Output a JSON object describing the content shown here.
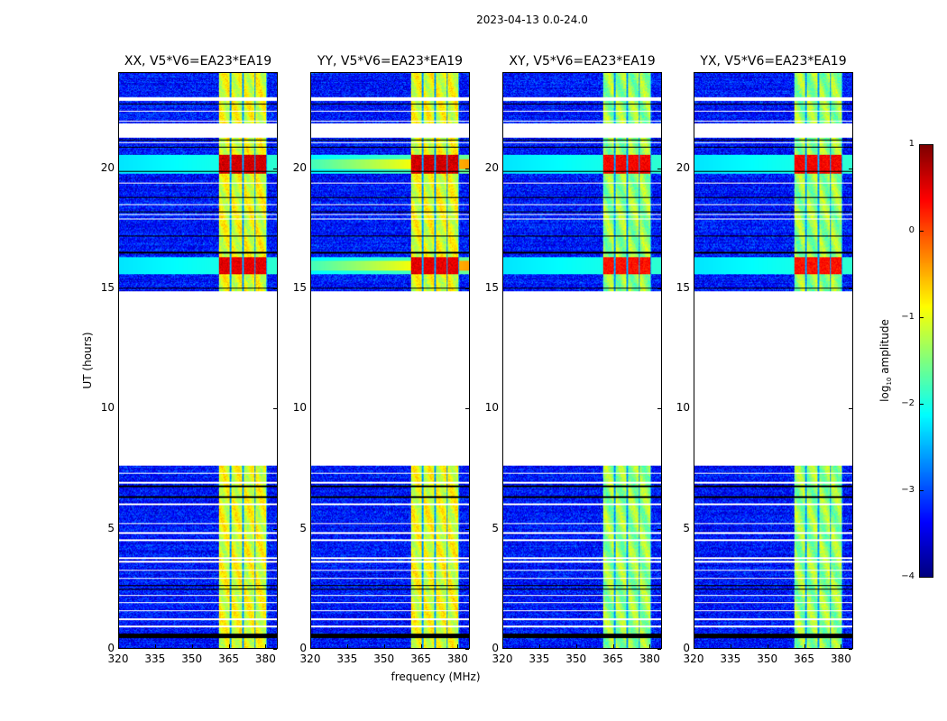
{
  "chart_data": {
    "type": "heatmap",
    "title": "2023-04-13 0.0-24.0",
    "xlabel": "frequency (MHz)",
    "ylabel": "UT (hours)",
    "xlim": [
      320,
      385
    ],
    "ylim": [
      0,
      24
    ],
    "xticks": [
      "320",
      "335",
      "350",
      "365",
      "380"
    ],
    "xtick_values": [
      320,
      335,
      350,
      365,
      380
    ],
    "yticks": [
      "0",
      "5",
      "10",
      "15",
      "20"
    ],
    "ytick_values": [
      0,
      5,
      10,
      15,
      20
    ],
    "panels": [
      {
        "title": "XX, V5*V6=EA23*EA19",
        "pol": "XX"
      },
      {
        "title": "YY, V5*V6=EA23*EA19",
        "pol": "YY"
      },
      {
        "title": "XY, V5*V6=EA23*EA19",
        "pol": "XY"
      },
      {
        "title": "YX, V5*V6=EA23*EA19",
        "pol": "YX"
      }
    ],
    "colorbar": {
      "label": "log10 amplitude",
      "label_main": "log",
      "label_sub": "10",
      "label_rest": " amplitude",
      "colormap": "jet",
      "range": [
        -4,
        1
      ],
      "ticks": [
        "1",
        "0",
        "−1",
        "−2",
        "−3",
        "−4"
      ],
      "tick_values": [
        1,
        0,
        -1,
        -2,
        -3,
        -4
      ]
    },
    "background_level": -3.3,
    "rfi_band_mhz": [
      361,
      381
    ],
    "rfi_band_level": {
      "XX": -1.0,
      "YY": -1.0,
      "XY": -1.4,
      "YX": -1.4
    },
    "subband_gaps_mhz": [
      365.8,
      370.9,
      376.0,
      381.0
    ],
    "flagged_hours": [
      [
        7.6,
        14.9
      ],
      [
        21.3,
        21.9
      ],
      [
        22.85,
        23.0
      ]
    ],
    "dropout_hours": [
      [
        0.4,
        0.6
      ],
      [
        15.0,
        15.05
      ],
      [
        6.3,
        6.35
      ]
    ],
    "bursts": [
      {
        "hours": [
          19.8,
          20.6
        ],
        "level": 0.6
      },
      {
        "hours": [
          15.6,
          16.3
        ],
        "level": 0.5
      }
    ]
  }
}
